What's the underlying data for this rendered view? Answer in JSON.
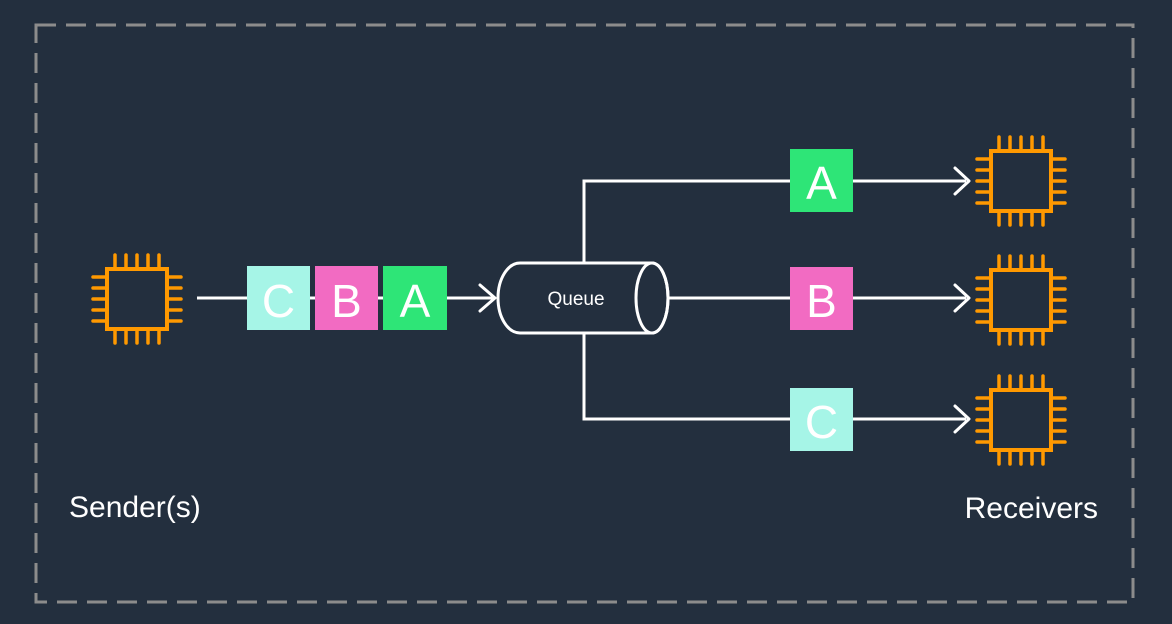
{
  "diagram": {
    "sender_label": "Sender(s)",
    "receivers_label": "Receivers",
    "queue_label": "Queue",
    "messages_in_transit": [
      "C",
      "B",
      "A"
    ],
    "deliveries": [
      "A",
      "B",
      "C"
    ]
  },
  "colors": {
    "background": "#232f3e",
    "border": "#8c8c8c",
    "chip_icon": "#ff9900",
    "arrow": "#ffffff",
    "message_A": "#2ee577",
    "message_B": "#f26bc2",
    "message_C": "#a6f5e7"
  },
  "icons": {
    "sender": "ec2-instance-chip-icon",
    "receiver": "ec2-instance-chip-icon",
    "queue": "queue-cylinder-icon"
  }
}
